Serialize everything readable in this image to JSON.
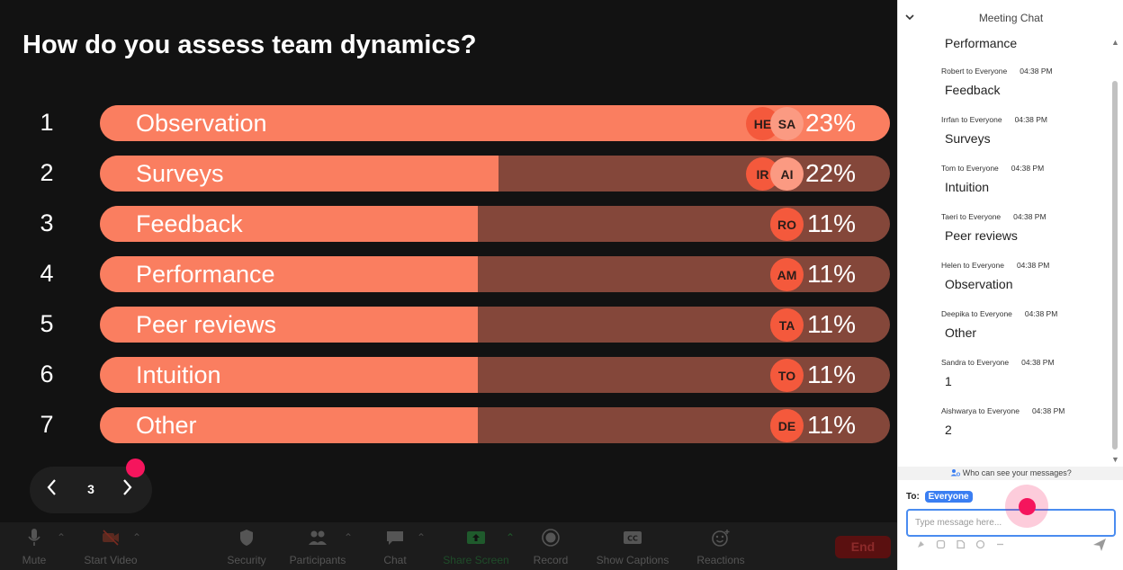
{
  "poll": {
    "question": "How do you assess team dynamics?",
    "page": "3",
    "options": [
      {
        "num": "1",
        "label": "Observation",
        "percent": 23,
        "percent_label": "23%",
        "avatars": [
          "HE",
          "SA"
        ]
      },
      {
        "num": "2",
        "label": "Surveys",
        "percent": 22,
        "percent_label": "22%",
        "avatars": [
          "IR",
          "AI"
        ]
      },
      {
        "num": "3",
        "label": "Feedback",
        "percent": 11,
        "percent_label": "11%",
        "avatars": [
          "RO"
        ]
      },
      {
        "num": "4",
        "label": "Performance",
        "percent": 11,
        "percent_label": "11%",
        "avatars": [
          "AM"
        ]
      },
      {
        "num": "5",
        "label": "Peer reviews",
        "percent": 11,
        "percent_label": "11%",
        "avatars": [
          "TA"
        ]
      },
      {
        "num": "6",
        "label": "Intuition",
        "percent": 11,
        "percent_label": "11%",
        "avatars": [
          "TO"
        ]
      },
      {
        "num": "7",
        "label": "Other",
        "percent": 11,
        "percent_label": "11%",
        "avatars": [
          "DE"
        ]
      }
    ]
  },
  "toolbar": {
    "items": [
      {
        "label": "Mute",
        "icon": "microphone-icon"
      },
      {
        "label": "Start Video",
        "icon": "video-off-icon"
      },
      {
        "label": "Security",
        "icon": "shield-icon"
      },
      {
        "label": "Participants",
        "icon": "participants-icon"
      },
      {
        "label": "Chat",
        "icon": "chat-bubble-icon"
      },
      {
        "label": "Share Screen",
        "icon": "share-screen-icon"
      },
      {
        "label": "Record",
        "icon": "record-icon"
      },
      {
        "label": "Show Captions",
        "icon": "captions-icon"
      },
      {
        "label": "Reactions",
        "icon": "reactions-icon"
      }
    ],
    "end_label": "End"
  },
  "chat": {
    "title": "Meeting Chat",
    "first_body": "Performance",
    "messages": [
      {
        "sender": "Robert to Everyone",
        "time": "04:38 PM",
        "body": "Feedback"
      },
      {
        "sender": "Irrfan to Everyone",
        "time": "04:38 PM",
        "body": "Surveys"
      },
      {
        "sender": "Tom to Everyone",
        "time": "04:38 PM",
        "body": "Intuition"
      },
      {
        "sender": "Taeri to Everyone",
        "time": "04:38 PM",
        "body": "Peer reviews"
      },
      {
        "sender": "Helen to Everyone",
        "time": "04:38 PM",
        "body": "Observation"
      },
      {
        "sender": "Deepika to Everyone",
        "time": "04:38 PM",
        "body": "Other"
      },
      {
        "sender": "Sandra to Everyone",
        "time": "04:38 PM",
        "body": "1"
      },
      {
        "sender": "Aishwarya to Everyone",
        "time": "04:38 PM",
        "body": "2"
      }
    ],
    "who_can_see": "Who can see your messages?",
    "to_label": "To:",
    "to_recipient": "Everyone",
    "input_placeholder": "Type message here..."
  },
  "colors": {
    "bar_fill": "#fa7e60",
    "bar_track": "#84473a",
    "avatar": "#f4593c",
    "accent_pink": "#f5155d",
    "chat_accent": "#3a7ef2"
  }
}
